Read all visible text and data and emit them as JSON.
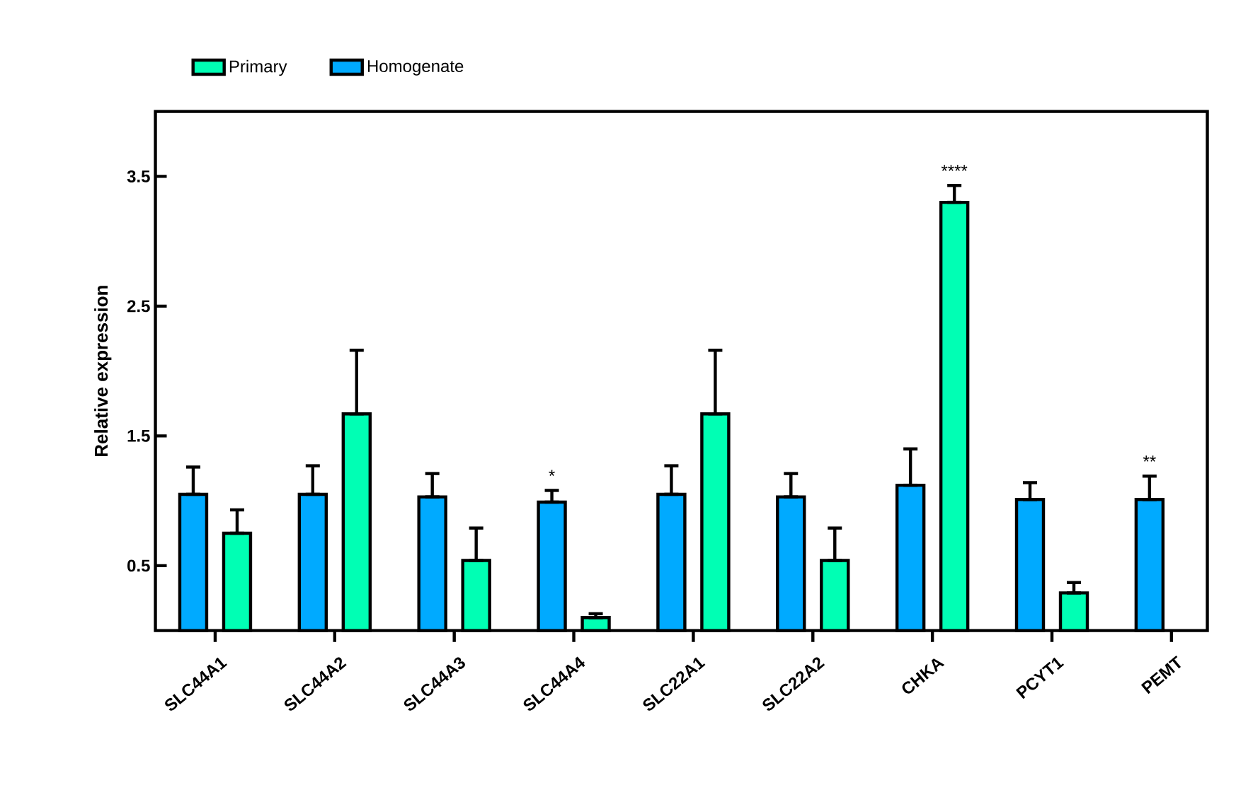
{
  "chart_data": {
    "type": "bar",
    "ylabel": "Relative expression",
    "categories": [
      "SLC44A1",
      "SLC44A2",
      "SLC44A3",
      "SLC44A4",
      "SLC22A1",
      "SLC22A2",
      "CHKA",
      "PCYT1",
      "PEMT"
    ],
    "series": [
      {
        "name": "Homogenate",
        "color": "#00aaff",
        "values": [
          1.05,
          1.05,
          1.03,
          0.99,
          1.05,
          1.03,
          1.12,
          1.01,
          1.01
        ],
        "errors": [
          [
            1.05,
            1.26
          ],
          [
            1.05,
            1.27
          ],
          [
            1.03,
            1.21
          ],
          [
            0.99,
            1.08
          ],
          [
            1.05,
            1.27
          ],
          [
            1.03,
            1.21
          ],
          [
            1.12,
            1.4
          ],
          [
            1.01,
            1.14
          ],
          [
            1.01,
            1.19
          ]
        ],
        "value_labels": [
          null,
          null,
          null,
          "*",
          null,
          null,
          null,
          null,
          "**"
        ]
      },
      {
        "name": "Primary",
        "color": "#00ffb4",
        "values": [
          0.75,
          1.67,
          0.54,
          0.1,
          1.67,
          0.54,
          3.3,
          0.29,
          null
        ],
        "errors": [
          [
            0.75,
            0.93
          ],
          [
            1.67,
            2.16
          ],
          [
            0.54,
            0.79
          ],
          [
            0.1,
            0.13
          ],
          [
            1.67,
            2.16
          ],
          [
            0.54,
            0.79
          ],
          [
            3.3,
            3.43
          ],
          [
            0.29,
            0.37
          ],
          null
        ],
        "value_labels": [
          null,
          null,
          null,
          null,
          null,
          null,
          "****",
          null,
          null
        ]
      }
    ],
    "ylim": [
      0,
      4
    ],
    "yticks": [
      0.5,
      1.5,
      2.5,
      3.5
    ],
    "grid": false,
    "legend": "top"
  }
}
